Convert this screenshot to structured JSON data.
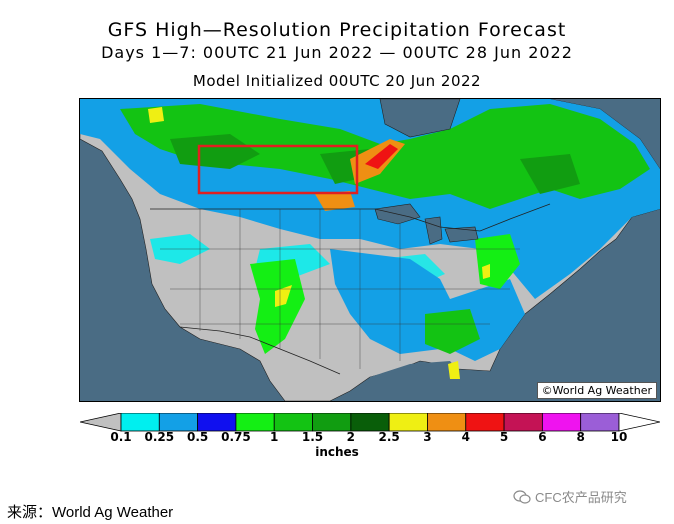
{
  "header": {
    "title": "GFS High—Resolution Precipitation Forecast",
    "period": "Days 1—7: 00UTC 21 Jun 2022 — 00UTC 28 Jun 2022",
    "init": "Model Initialized 00UTC 20 Jun 2022"
  },
  "map": {
    "credit": "©World Ag Weather",
    "highlight_color": "#e02020",
    "ocean_color": "#4a6c84",
    "land_dry_color": "#c0c0c0"
  },
  "legend": {
    "colors": [
      "#00efef",
      "#13a0e6",
      "#1010ef",
      "#14ef14",
      "#13c313",
      "#119d11",
      "#095e09",
      "#efef13",
      "#ef8f13",
      "#ef1313",
      "#c41355",
      "#ef13ef",
      "#9b5ed7"
    ],
    "ticks": [
      "0.1",
      "0.25",
      "0.5",
      "0.75",
      "1",
      "1.5",
      "2",
      "2.5",
      "3",
      "4",
      "5",
      "6",
      "8",
      "10"
    ],
    "units": "inches"
  },
  "footer": {
    "source": "来源：World Ag Weather",
    "watermark": "CFC农产品研究"
  }
}
